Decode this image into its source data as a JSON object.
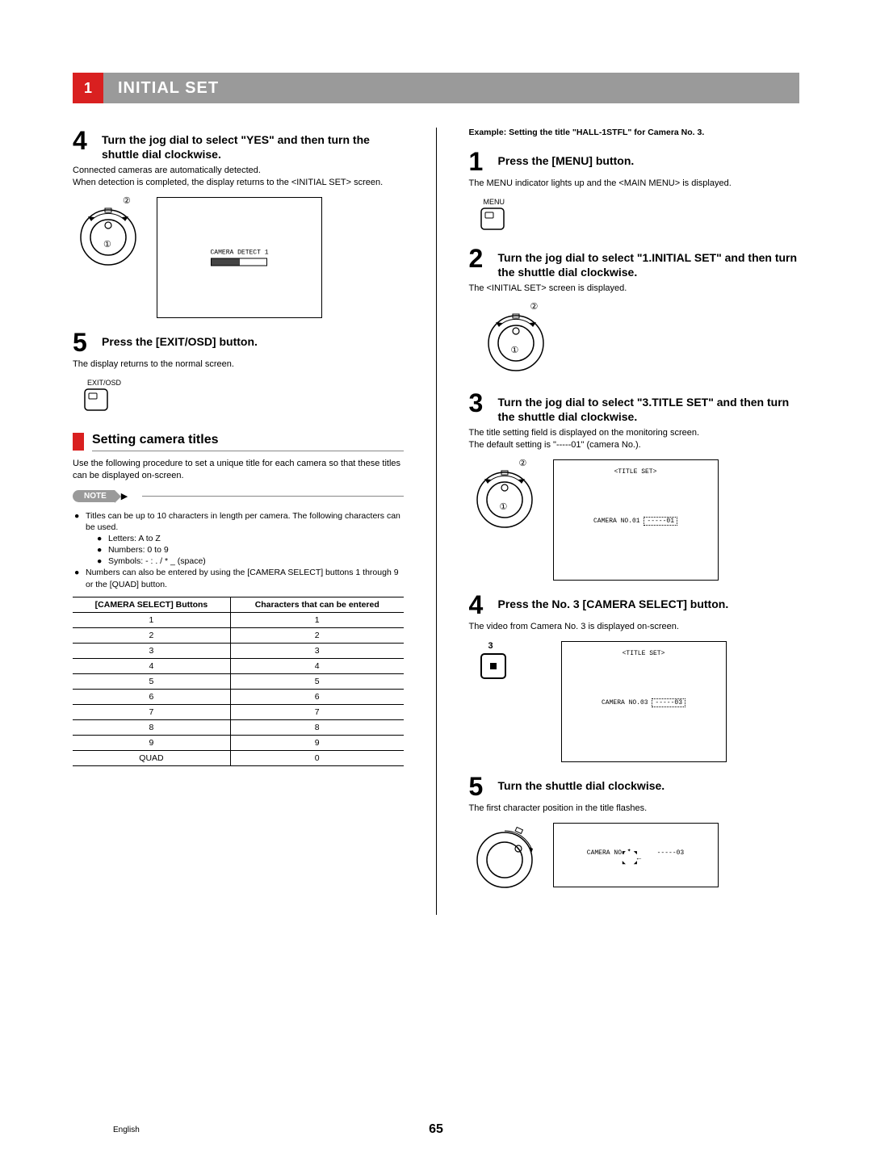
{
  "header": {
    "num": "1",
    "title": "INITIAL SET"
  },
  "left": {
    "step4": {
      "num": "4",
      "title": "Turn the jog dial to select \"YES\" and then turn the shuttle dial clockwise.",
      "body1": "Connected cameras are automatically detected.",
      "body2": "When detection is completed, the display returns to the <INITIAL SET> screen.",
      "screen_text": "CAMERA DETECT 1"
    },
    "step5": {
      "num": "5",
      "title": "Press the [EXIT/OSD] button.",
      "body": "The display returns to the normal screen.",
      "button_label": "EXIT/OSD"
    },
    "subhead": "Setting camera titles",
    "subhead_body": "Use the following procedure to set a unique title for each camera so that these titles can be displayed on-screen.",
    "note_label": "NOTE",
    "note": {
      "b1": "Titles can be up to 10 characters in length per camera. The following characters can be used.",
      "s1": "Letters: A to Z",
      "s2": "Numbers: 0 to 9",
      "s3": "Symbols: - : . / * _ (space)",
      "b2": "Numbers can also be entered by using the [CAMERA SELECT] buttons 1 through 9 or the [QUAD] button."
    },
    "table": {
      "h1": "[CAMERA SELECT] Buttons",
      "h2": "Characters that can be entered",
      "rows": [
        [
          "1",
          "1"
        ],
        [
          "2",
          "2"
        ],
        [
          "3",
          "3"
        ],
        [
          "4",
          "4"
        ],
        [
          "5",
          "5"
        ],
        [
          "6",
          "6"
        ],
        [
          "7",
          "7"
        ],
        [
          "8",
          "8"
        ],
        [
          "9",
          "9"
        ],
        [
          "QUAD",
          "0"
        ]
      ]
    }
  },
  "right": {
    "example": "Example: Setting the title \"HALL-1STFL\" for Camera No. 3.",
    "step1": {
      "num": "1",
      "title": "Press the [MENU] button.",
      "body": "The MENU indicator lights up and the <MAIN MENU> is displayed.",
      "button_label": "MENU"
    },
    "step2": {
      "num": "2",
      "title": "Turn the jog dial to select \"1.INITIAL SET\" and then turn the shuttle dial clockwise.",
      "body": "The <INITIAL SET> screen is displayed."
    },
    "step3": {
      "num": "3",
      "title": "Turn the jog dial to select \"3.TITLE SET\" and then turn the shuttle dial clockwise.",
      "body1": "The title setting field is displayed on the monitoring screen.",
      "body2": "The default setting is \"-----01\" (camera No.).",
      "screen_title": "<TITLE SET>",
      "screen_line_prefix": "CAMERA NO.01",
      "screen_line_box": "-----01"
    },
    "step4": {
      "num": "4",
      "title": "Press the No. 3 [CAMERA SELECT] button.",
      "body": "The video from Camera No. 3 is displayed on-screen.",
      "button_label": "3",
      "screen_title": "<TITLE SET>",
      "screen_line_prefix": "CAMERA NO.03",
      "screen_line_box": "-----03"
    },
    "step5": {
      "num": "5",
      "title": "Turn the shuttle dial clockwise.",
      "body": "The first character position in the title flashes.",
      "screen_line_prefix": "CAMERA NO.",
      "screen_line_suffix": "-----03"
    }
  },
  "footer": {
    "page": "65",
    "lang": "English"
  }
}
